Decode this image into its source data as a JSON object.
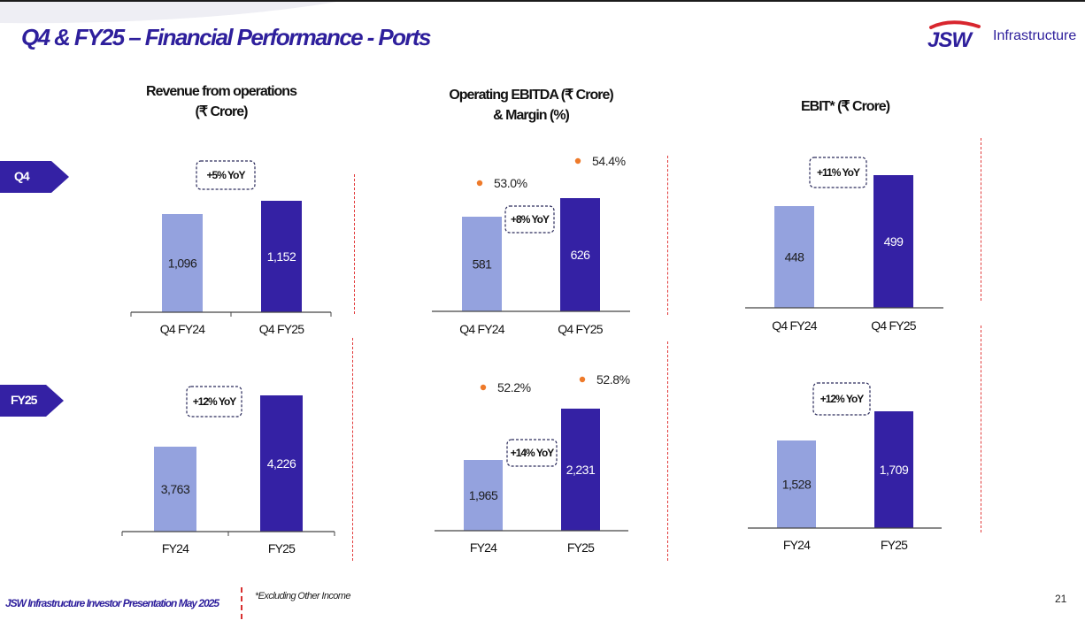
{
  "header": {
    "title": "Q4 & FY25 – Financial Performance - Ports",
    "brand": "Infrastructure",
    "logo_text": "JSW"
  },
  "columns": {
    "revenue": {
      "line1": "Revenue from operations",
      "line2": "(₹ Crore)"
    },
    "ebitda": {
      "line1": "Operating EBITDA (₹ Crore)",
      "line2": "& Margin (%)"
    },
    "ebit": {
      "line1": "EBIT* (₹ Crore)"
    }
  },
  "rows": {
    "q4": "Q4",
    "fy": "FY25"
  },
  "colors": {
    "prior": "#94a2de",
    "current": "#3421a4",
    "accent": "#2e1f9c",
    "marker": "#ee7a2a",
    "divider": "#e23a3a"
  },
  "chart_data": [
    {
      "type": "bar",
      "panel": "revenue-q4",
      "categories": [
        "Q4 FY24",
        "Q4 FY25"
      ],
      "values": [
        1096,
        1152
      ],
      "labels": [
        "1,096",
        "1,152"
      ],
      "badge": "+5% YoY",
      "title": "Revenue from operations (₹ Crore)"
    },
    {
      "type": "bar",
      "panel": "ebitda-q4",
      "categories": [
        "Q4 FY24",
        "Q4 FY25"
      ],
      "values": [
        581,
        626
      ],
      "labels": [
        "581",
        "626"
      ],
      "margins": [
        53.0,
        54.4
      ],
      "margin_labels": [
        "53.0%",
        "54.4%"
      ],
      "badge": "+8% YoY",
      "title": "Operating EBITDA (₹ Crore) & Margin (%)"
    },
    {
      "type": "bar",
      "panel": "ebit-q4",
      "categories": [
        "Q4 FY24",
        "Q4 FY25"
      ],
      "values": [
        448,
        499
      ],
      "labels": [
        "448",
        "499"
      ],
      "badge": "+11% YoY",
      "title": "EBIT* (₹ Crore)"
    },
    {
      "type": "bar",
      "panel": "revenue-fy",
      "categories": [
        "FY24",
        "FY25"
      ],
      "values": [
        3763,
        4226
      ],
      "labels": [
        "3,763",
        "4,226"
      ],
      "badge": "+12% YoY",
      "title": "Revenue from operations (₹ Crore)"
    },
    {
      "type": "bar",
      "panel": "ebitda-fy",
      "categories": [
        "FY24",
        "FY25"
      ],
      "values": [
        1965,
        2231
      ],
      "labels": [
        "1,965",
        "2,231"
      ],
      "margins": [
        52.2,
        52.8
      ],
      "margin_labels": [
        "52.2%",
        "52.8%"
      ],
      "badge": "+14% YoY",
      "title": "Operating EBITDA (₹ Crore) & Margin (%)"
    },
    {
      "type": "bar",
      "panel": "ebit-fy",
      "categories": [
        "FY24",
        "FY25"
      ],
      "values": [
        1528,
        1709
      ],
      "labels": [
        "1,528",
        "1,709"
      ],
      "badge": "+12% YoY",
      "title": "EBIT* (₹ Crore)"
    }
  ],
  "footer": {
    "presentation": "JSW Infrastructure Investor Presentation May 2025",
    "note": "*Excluding Other Income",
    "page": "21"
  }
}
